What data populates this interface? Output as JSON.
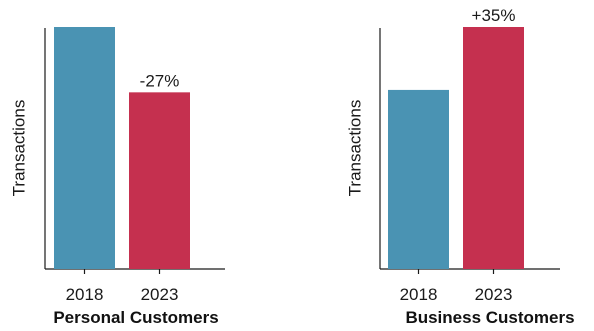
{
  "chart_data": [
    {
      "type": "bar",
      "title": "Personal Customers",
      "xlabel": "",
      "ylabel": "Transactions",
      "categories": [
        "2018",
        "2023"
      ],
      "values": [
        100,
        73
      ],
      "data_labels": [
        "",
        "-27%"
      ],
      "ylim": [
        0,
        100
      ],
      "colors": [
        "#4a93b3",
        "#c5304f"
      ],
      "grid": false,
      "legend": "none"
    },
    {
      "type": "bar",
      "title": "Business Customers",
      "xlabel": "",
      "ylabel": "Transactions",
      "categories": [
        "2018",
        "2023"
      ],
      "values": [
        74,
        100
      ],
      "data_labels": [
        "",
        "+35%"
      ],
      "ylim": [
        0,
        100
      ],
      "colors": [
        "#4a93b3",
        "#c5304f"
      ],
      "grid": false,
      "legend": "none"
    }
  ]
}
